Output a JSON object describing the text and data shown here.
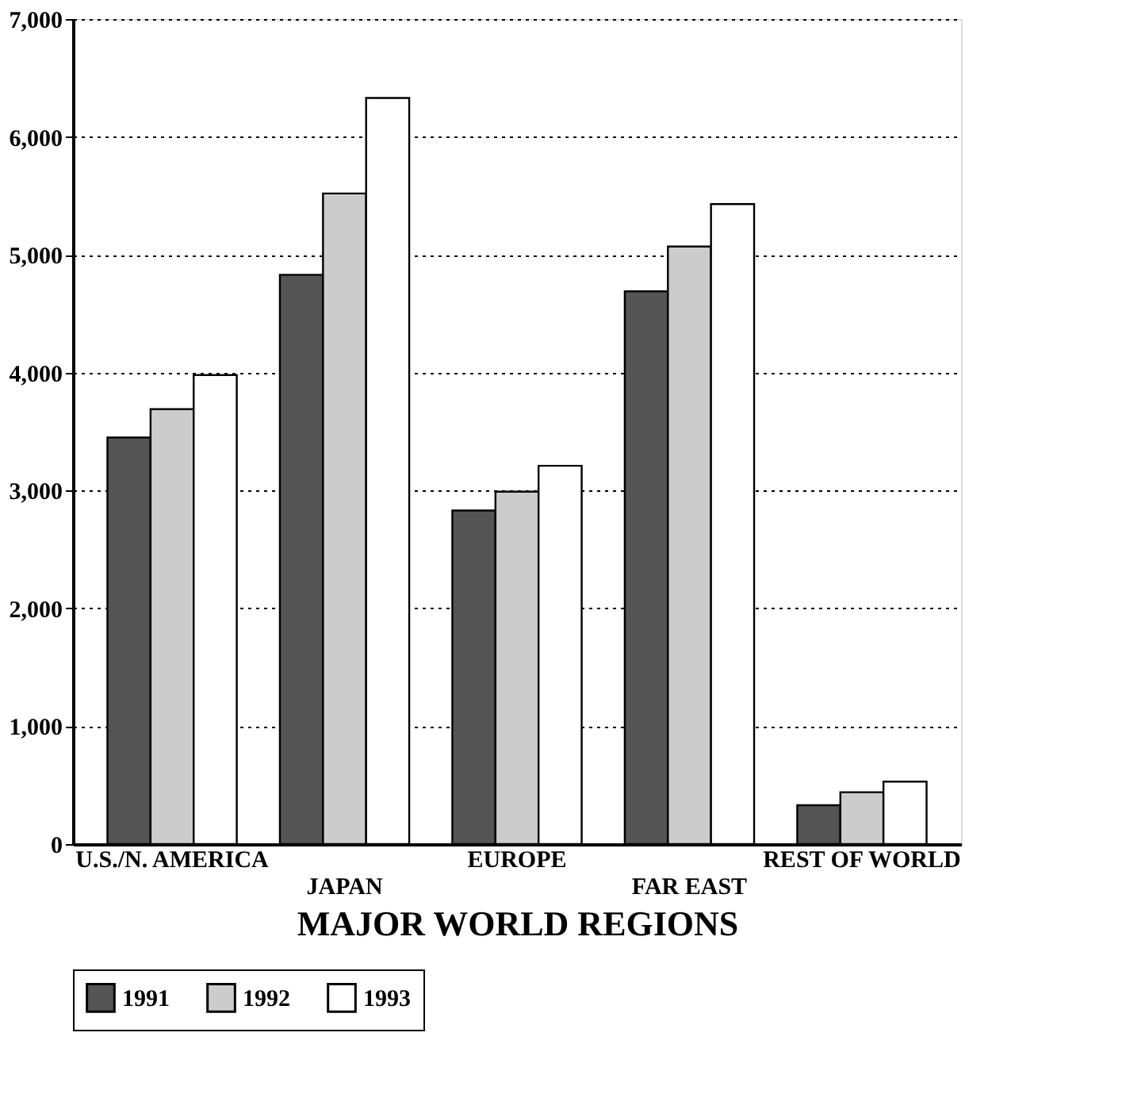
{
  "chart_data": {
    "type": "bar",
    "xlabel": "MAJOR WORLD REGIONS",
    "categories": [
      "U.S./N. AMERICA",
      "JAPAN",
      "EUROPE",
      "FAR EAST",
      "REST OF WORLD"
    ],
    "series": [
      {
        "name": "1991",
        "color": "#555555",
        "values": [
          3450,
          4830,
          2830,
          4690,
          330
        ]
      },
      {
        "name": "1992",
        "color": "#cccccc",
        "values": [
          3690,
          5520,
          2990,
          5070,
          440
        ]
      },
      {
        "name": "1993",
        "color": "#ffffff",
        "values": [
          3980,
          6330,
          3210,
          5430,
          530
        ]
      }
    ],
    "ylim": [
      0,
      7000
    ],
    "yticks": [
      {
        "value": 0,
        "label": "0"
      },
      {
        "value": 1000,
        "label": "1,000"
      },
      {
        "value": 2000,
        "label": "2,000"
      },
      {
        "value": 3000,
        "label": "3,000"
      },
      {
        "value": 4000,
        "label": "4,000"
      },
      {
        "value": 5000,
        "label": "5,000"
      },
      {
        "value": 6000,
        "label": "6,000"
      },
      {
        "value": 7000,
        "label": "7,000"
      }
    ],
    "grid": "y",
    "legend": "bottom"
  }
}
